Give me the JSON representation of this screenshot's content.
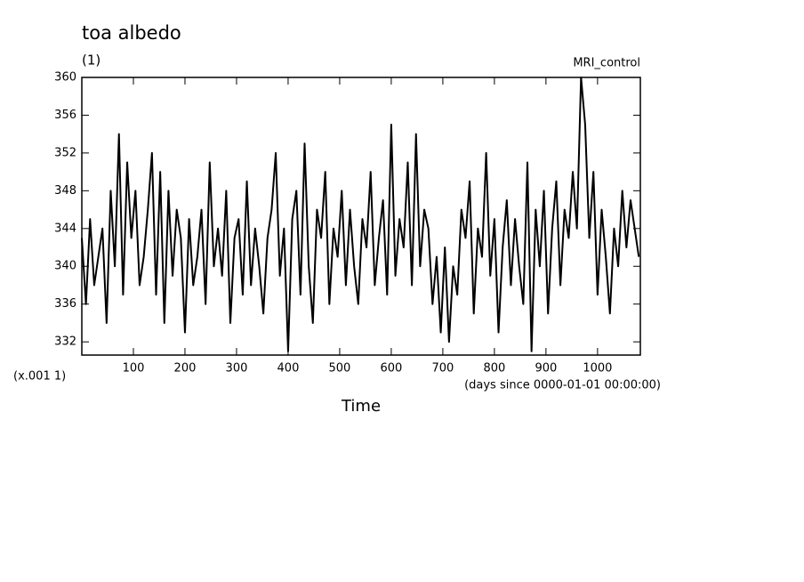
{
  "chart_data": {
    "type": "line",
    "title": "toa albedo",
    "units": "(1)",
    "subtitle": "MRI_control",
    "y_scale_label": "(x.001 1)",
    "x_units_label": "(days since 0000-01-01 00:00:00)",
    "x_label": "Time",
    "color": "#000000",
    "x": [
      0,
      8,
      16,
      24,
      32,
      40,
      48,
      56,
      64,
      72,
      80,
      88,
      96,
      104,
      112,
      120,
      128,
      136,
      144,
      152,
      160,
      168,
      176,
      184,
      192,
      200,
      208,
      216,
      224,
      232,
      240,
      248,
      256,
      264,
      272,
      280,
      288,
      296,
      304,
      312,
      320,
      328,
      336,
      344,
      352,
      360,
      368,
      376,
      384,
      392,
      400,
      408,
      416,
      424,
      432,
      440,
      448,
      456,
      464,
      472,
      480,
      488,
      496,
      504,
      512,
      520,
      528,
      536,
      544,
      552,
      560,
      568,
      576,
      584,
      592,
      600,
      608,
      616,
      624,
      632,
      640,
      648,
      656,
      664,
      672,
      680,
      688,
      696,
      704,
      712,
      720,
      728,
      736,
      744,
      752,
      760,
      768,
      776,
      784,
      792,
      800,
      808,
      816,
      824,
      832,
      840,
      848,
      856,
      864,
      872,
      880,
      888,
      896,
      904,
      912,
      920,
      928,
      936,
      944,
      952,
      960,
      968,
      976,
      984,
      992,
      1000,
      1008,
      1016,
      1024,
      1032,
      1040,
      1048,
      1056,
      1064,
      1072,
      1080
    ],
    "values": [
      343,
      336,
      345,
      338,
      341,
      344,
      334,
      348,
      340,
      354,
      337,
      351,
      343,
      348,
      338,
      341,
      346,
      352,
      337,
      350,
      334,
      348,
      339,
      346,
      343,
      333,
      345,
      338,
      341,
      346,
      336,
      351,
      340,
      344,
      339,
      348,
      334,
      343,
      345,
      337,
      349,
      338,
      344,
      340,
      335,
      343,
      346,
      352,
      339,
      344,
      331,
      345,
      348,
      337,
      353,
      340,
      334,
      346,
      343,
      350,
      336,
      344,
      341,
      348,
      338,
      346,
      340,
      336,
      345,
      342,
      350,
      338,
      343,
      347,
      337,
      355,
      339,
      345,
      342,
      351,
      338,
      354,
      340,
      346,
      344,
      336,
      341,
      333,
      342,
      332,
      340,
      337,
      346,
      343,
      349,
      335,
      344,
      341,
      352,
      339,
      345,
      333,
      342,
      347,
      338,
      345,
      340,
      336,
      351,
      331,
      346,
      340,
      348,
      335,
      344,
      349,
      338,
      346,
      343,
      350,
      344,
      360,
      355,
      343,
      350,
      337,
      346,
      341,
      335,
      344,
      340,
      348,
      342,
      347,
      344,
      341
    ],
    "xlim": [
      0,
      1083
    ],
    "ylim": [
      330.6,
      360
    ],
    "xticks": [
      100,
      200,
      300,
      400,
      500,
      600,
      700,
      800,
      900,
      1000
    ],
    "yticks": [
      332,
      336,
      340,
      344,
      348,
      352,
      356,
      360
    ]
  }
}
